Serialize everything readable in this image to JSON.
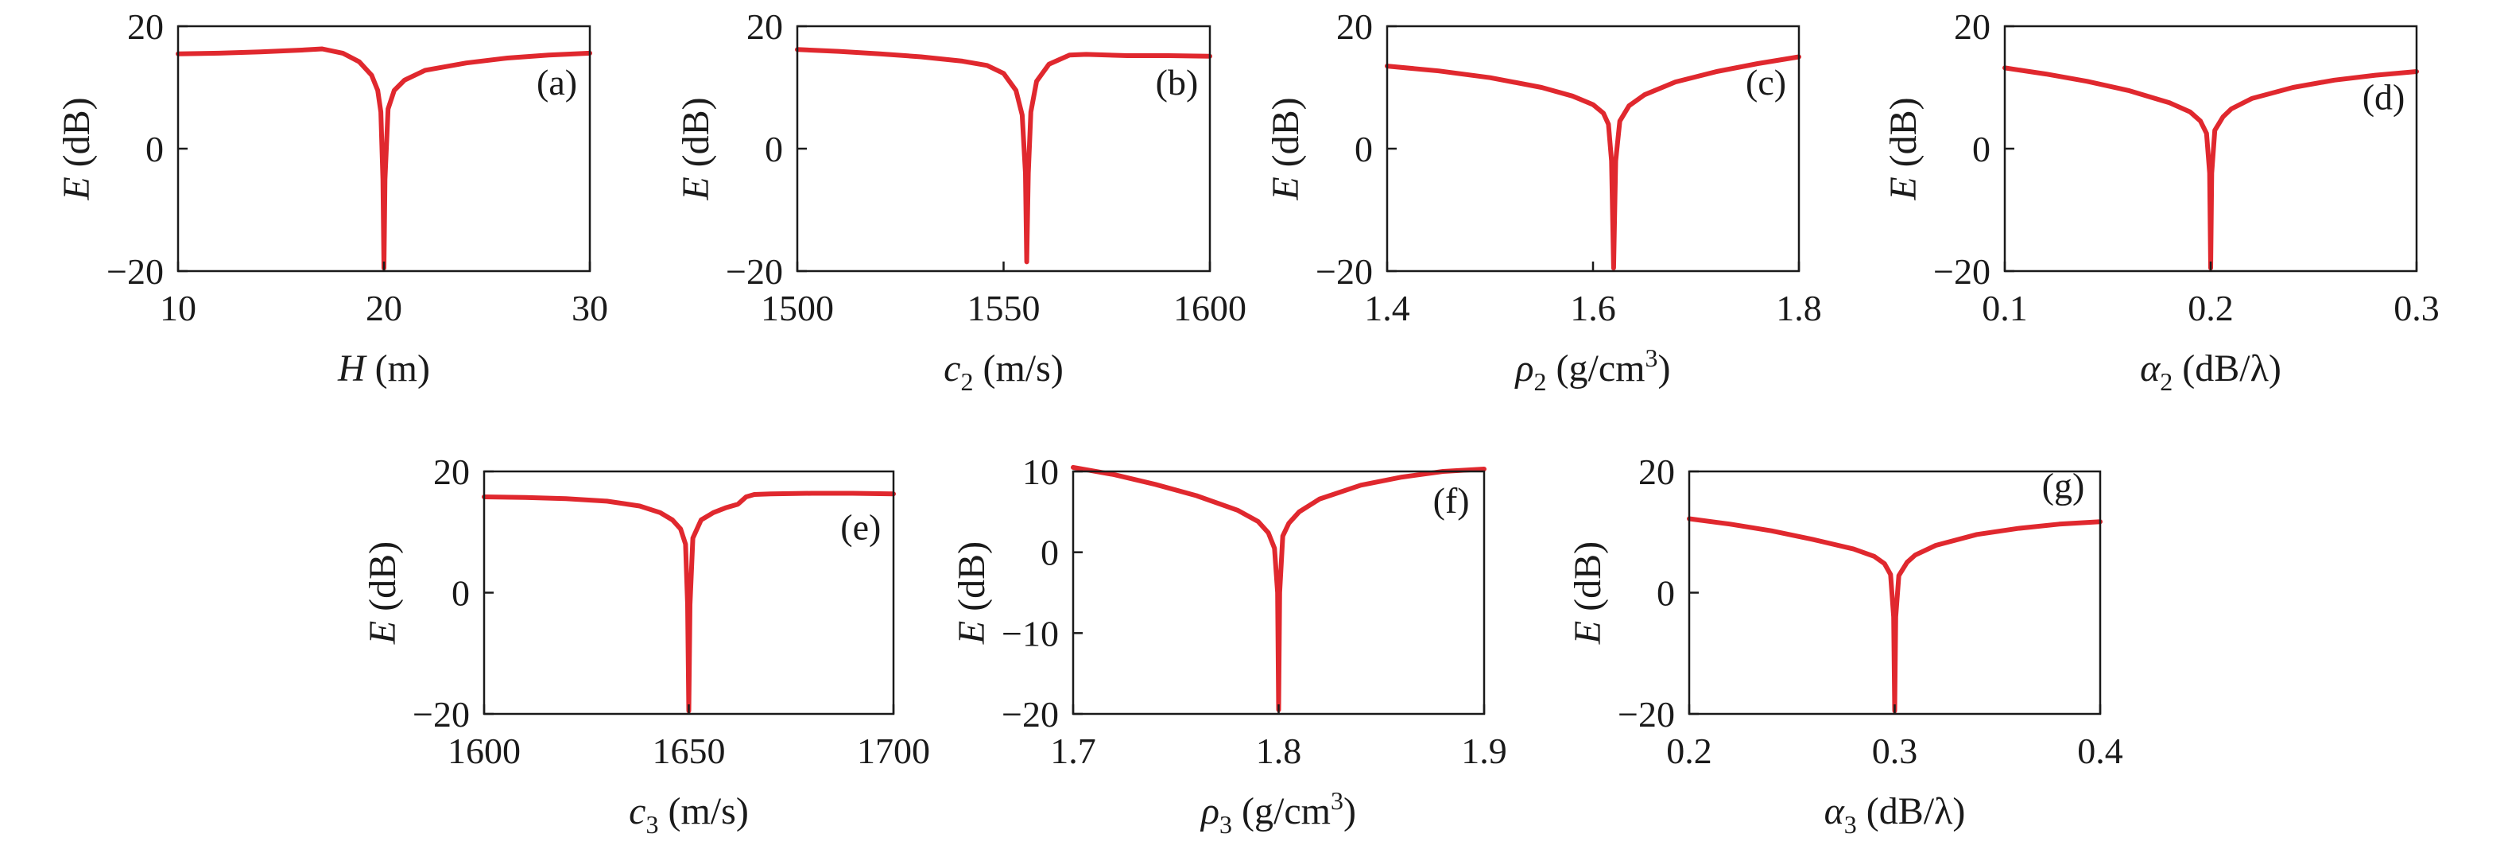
{
  "figure": {
    "curve_color": "#e0282e",
    "axis_color": "#1a1a1a"
  },
  "chart_data": [
    {
      "panel": "(a)",
      "type": "line",
      "ylabel_var": "E",
      "ylabel_unit": " (dB)",
      "xlabel_var": "H",
      "xlabel_sub": "",
      "xlabel_sup": "",
      "xlabel_unit": " (m)",
      "xlabel_unit_sup": "",
      "xlabel_unit_tail": "",
      "xlim": [
        10,
        30
      ],
      "ylim": [
        -20,
        20
      ],
      "xticks": [
        10,
        20,
        30
      ],
      "xtick_labels": [
        "10",
        "20",
        "30"
      ],
      "yticks": [
        -20,
        0,
        20
      ],
      "ytick_labels": [
        "−20",
        "0",
        "20"
      ],
      "series": [
        {
          "x": [
            10,
            12,
            14,
            16,
            17,
            18,
            18.8,
            19.4,
            19.7,
            19.85,
            19.95,
            20,
            20.05,
            20.2,
            20.5,
            21,
            22,
            24,
            26,
            28,
            30
          ],
          "y": [
            15.5,
            15.6,
            15.8,
            16.1,
            16.3,
            15.6,
            14.2,
            12.0,
            9.5,
            6.0,
            -5,
            -19.5,
            -5,
            6.5,
            9.5,
            11.2,
            12.8,
            14.0,
            14.8,
            15.3,
            15.6
          ]
        }
      ]
    },
    {
      "panel": "(b)",
      "type": "line",
      "ylabel_var": "E",
      "ylabel_unit": " (dB)",
      "xlabel_var": "c",
      "xlabel_sub": "2",
      "xlabel_sup": "",
      "xlabel_unit": " (m/s)",
      "xlabel_unit_sup": "",
      "xlabel_unit_tail": "",
      "xlim": [
        1500,
        1600
      ],
      "ylim": [
        -20,
        20
      ],
      "xticks": [
        1500,
        1550,
        1600
      ],
      "xtick_labels": [
        "1500",
        "1550",
        "1600"
      ],
      "yticks": [
        -20,
        0,
        20
      ],
      "ytick_labels": [
        "−20",
        "0",
        "20"
      ],
      "series": [
        {
          "x": [
            1500,
            1510,
            1520,
            1530,
            1540,
            1546,
            1550,
            1553,
            1554.5,
            1555.3,
            1555.6,
            1556,
            1556.6,
            1558,
            1561,
            1566,
            1570,
            1580,
            1590,
            1600
          ],
          "y": [
            16.2,
            15.9,
            15.5,
            15.0,
            14.3,
            13.6,
            12.3,
            9.5,
            5.5,
            -4,
            -18.5,
            -4,
            6.0,
            11.0,
            13.8,
            15.3,
            15.4,
            15.2,
            15.2,
            15.1
          ]
        }
      ]
    },
    {
      "panel": "(c)",
      "type": "line",
      "ylabel_var": "E",
      "ylabel_unit": " (dB)",
      "xlabel_var": "ρ",
      "xlabel_sub": "2",
      "xlabel_sup": "",
      "xlabel_unit": " (g/cm",
      "xlabel_unit_sup": "3",
      "xlabel_unit_tail": ")",
      "xlim": [
        1.4,
        1.8
      ],
      "ylim": [
        -20,
        20
      ],
      "xticks": [
        1.4,
        1.6,
        1.8
      ],
      "xtick_labels": [
        "1.4",
        "1.6",
        "1.8"
      ],
      "yticks": [
        -20,
        0,
        20
      ],
      "ytick_labels": [
        "−20",
        "0",
        "20"
      ],
      "series": [
        {
          "x": [
            1.4,
            1.45,
            1.5,
            1.55,
            1.58,
            1.6,
            1.61,
            1.615,
            1.618,
            1.62,
            1.622,
            1.626,
            1.635,
            1.65,
            1.68,
            1.72,
            1.76,
            1.8
          ],
          "y": [
            13.5,
            12.7,
            11.6,
            10.0,
            8.6,
            7.2,
            5.8,
            4.0,
            -2,
            -19.5,
            -2,
            4.5,
            7.0,
            8.8,
            10.9,
            12.6,
            13.9,
            15.0
          ]
        }
      ]
    },
    {
      "panel": "(d)",
      "type": "line",
      "ylabel_var": "E",
      "ylabel_unit": " (dB)",
      "xlabel_var": "α",
      "xlabel_sub": "2",
      "xlabel_sup": "",
      "xlabel_unit": " (dB/λ)",
      "xlabel_unit_sup": "",
      "xlabel_unit_tail": "",
      "xlim": [
        0.1,
        0.3
      ],
      "ylim": [
        -20,
        20
      ],
      "xticks": [
        0.1,
        0.2,
        0.3
      ],
      "xtick_labels": [
        "0.1",
        "0.2",
        "0.3"
      ],
      "yticks": [
        -20,
        0,
        20
      ],
      "ytick_labels": [
        "−20",
        "0",
        "20"
      ],
      "series": [
        {
          "x": [
            0.1,
            0.12,
            0.14,
            0.16,
            0.18,
            0.19,
            0.195,
            0.198,
            0.1995,
            0.2,
            0.2005,
            0.202,
            0.206,
            0.21,
            0.22,
            0.24,
            0.26,
            0.28,
            0.3
          ],
          "y": [
            13.2,
            12.2,
            11.0,
            9.5,
            7.5,
            6.0,
            4.5,
            2.5,
            -4,
            -19.5,
            -4,
            3.0,
            5.2,
            6.5,
            8.2,
            10.0,
            11.2,
            12.0,
            12.6
          ]
        }
      ]
    },
    {
      "panel": "(e)",
      "type": "line",
      "ylabel_var": "E",
      "ylabel_unit": " (dB)",
      "xlabel_var": "c",
      "xlabel_sub": "3",
      "xlabel_sup": "",
      "xlabel_unit": " (m/s)",
      "xlabel_unit_sup": "",
      "xlabel_unit_tail": "",
      "xlim": [
        1600,
        1700
      ],
      "ylim": [
        -20,
        20
      ],
      "xticks": [
        1600,
        1650,
        1700
      ],
      "xtick_labels": [
        "1600",
        "1650",
        "1700"
      ],
      "yticks": [
        -20,
        0,
        20
      ],
      "ytick_labels": [
        "−20",
        "0",
        "20"
      ],
      "series": [
        {
          "x": [
            1600,
            1610,
            1620,
            1630,
            1638,
            1643,
            1646,
            1648,
            1649.2,
            1649.7,
            1650,
            1650.3,
            1651,
            1653,
            1656,
            1659,
            1662,
            1664,
            1666,
            1670,
            1680,
            1690,
            1700
          ],
          "y": [
            15.8,
            15.7,
            15.5,
            15.1,
            14.3,
            13.2,
            12.0,
            10.5,
            8.0,
            -2,
            -19.5,
            -2,
            9.0,
            12.0,
            13.2,
            14.0,
            14.6,
            15.8,
            16.2,
            16.3,
            16.4,
            16.4,
            16.3
          ]
        }
      ]
    },
    {
      "panel": "(f)",
      "type": "line",
      "ylabel_var": "E",
      "ylabel_unit": " (dB)",
      "xlabel_var": "ρ",
      "xlabel_sub": "3",
      "xlabel_sup": "",
      "xlabel_unit": " (g/cm",
      "xlabel_unit_sup": "3",
      "xlabel_unit_tail": ")",
      "xlim": [
        1.7,
        1.9
      ],
      "ylim": [
        -20,
        10
      ],
      "xticks": [
        1.7,
        1.8,
        1.9
      ],
      "xtick_labels": [
        "1.7",
        "1.8",
        "1.9"
      ],
      "yticks": [
        -20,
        -10,
        0,
        10
      ],
      "ytick_labels": [
        "−20",
        "−10",
        "0",
        "10"
      ],
      "series": [
        {
          "x": [
            1.7,
            1.72,
            1.74,
            1.76,
            1.78,
            1.79,
            1.795,
            1.798,
            1.7995,
            1.8,
            1.8005,
            1.802,
            1.805,
            1.81,
            1.82,
            1.84,
            1.86,
            1.88,
            1.9
          ],
          "y": [
            10.5,
            9.6,
            8.4,
            7.0,
            5.2,
            3.8,
            2.4,
            0.5,
            -5,
            -19.5,
            -5,
            2.0,
            3.6,
            5.0,
            6.6,
            8.3,
            9.3,
            10.0,
            10.3
          ]
        }
      ]
    },
    {
      "panel": "(g)",
      "type": "line",
      "ylabel_var": "E",
      "ylabel_unit": " (dB)",
      "xlabel_var": "α",
      "xlabel_sub": "3",
      "xlabel_sup": "",
      "xlabel_unit": " (dB/λ)",
      "xlabel_unit_sup": "",
      "xlabel_unit_tail": "",
      "xlim": [
        0.2,
        0.4
      ],
      "ylim": [
        -20,
        20
      ],
      "xticks": [
        0.2,
        0.3,
        0.4
      ],
      "xtick_labels": [
        "0.2",
        "0.3",
        "0.4"
      ],
      "yticks": [
        -20,
        0,
        20
      ],
      "ytick_labels": [
        "−20",
        "0",
        "20"
      ],
      "series": [
        {
          "x": [
            0.2,
            0.22,
            0.24,
            0.26,
            0.28,
            0.29,
            0.295,
            0.298,
            0.2995,
            0.3,
            0.3005,
            0.302,
            0.306,
            0.31,
            0.32,
            0.34,
            0.36,
            0.38,
            0.4
          ],
          "y": [
            12.2,
            11.3,
            10.2,
            8.8,
            7.2,
            6.0,
            4.8,
            3.0,
            -4,
            -19.5,
            -4,
            2.8,
            5.0,
            6.2,
            7.8,
            9.6,
            10.6,
            11.3,
            11.7
          ]
        }
      ]
    }
  ]
}
